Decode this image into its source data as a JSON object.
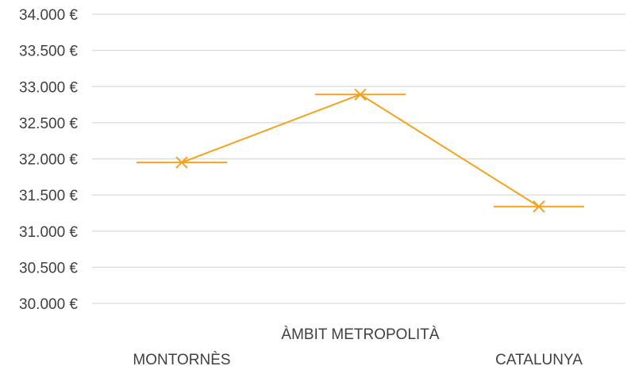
{
  "chart_data": {
    "type": "line",
    "title": "",
    "xlabel": "",
    "ylabel": "",
    "categories": [
      "MONTORNÈS",
      "ÀMBIT METROPOLITÀ",
      "CATALUNYA"
    ],
    "series": [
      {
        "values": [
          31950,
          32890,
          31340
        ],
        "color": "#f5a21b",
        "marker": "x"
      }
    ],
    "ylim": [
      30000,
      34000
    ],
    "ytick_step": 500,
    "ytick_labels": [
      "30.000 €",
      "30.500 €",
      "31.000 €",
      "31.500 €",
      "32.000 €",
      "32.500 €",
      "33.000 €",
      "33.500 €",
      "34.000 €"
    ],
    "grid": true,
    "legend": "none"
  }
}
